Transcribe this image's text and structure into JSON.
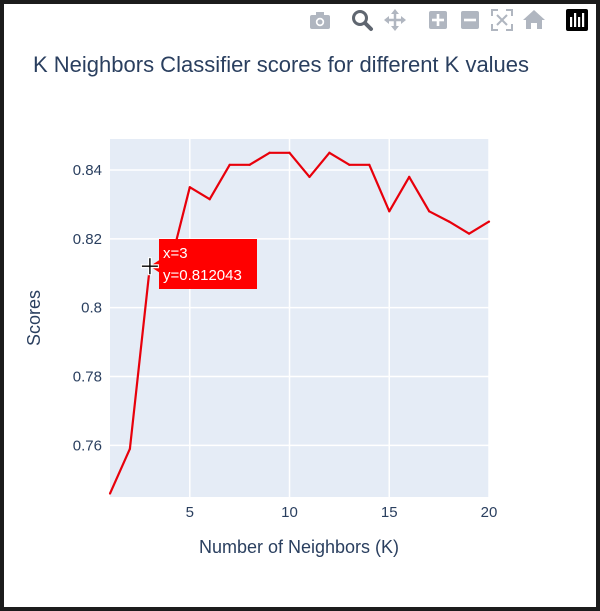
{
  "chart_data": {
    "type": "line",
    "title": "K Neighbors Classifier scores for different K values",
    "xlabel": "Number of Neighbors (K)",
    "ylabel": "Scores",
    "xlim": [
      1,
      20
    ],
    "ylim": [
      0.745,
      0.849
    ],
    "xticks": [
      5,
      10,
      15,
      20
    ],
    "yticks": [
      0.76,
      0.78,
      0.8,
      0.82,
      0.84
    ],
    "ytick_labels": [
      "0.76",
      "0.78",
      "0.8",
      "0.82",
      "0.84"
    ],
    "grid": true,
    "series": [
      {
        "color": "#e8000b",
        "x": [
          1,
          2,
          3,
          4,
          5,
          6,
          7,
          8,
          9,
          10,
          11,
          12,
          13,
          14,
          15,
          16,
          17,
          18,
          19,
          20
        ],
        "y": [
          0.746,
          0.759,
          0.812043,
          0.812,
          0.835,
          0.8315,
          0.8415,
          0.8415,
          0.845,
          0.845,
          0.838,
          0.845,
          0.8415,
          0.8415,
          0.828,
          0.838,
          0.828,
          0.825,
          0.8215,
          0.825
        ]
      }
    ],
    "hover": {
      "x_text": "x=3",
      "y_text": "y=0.812043",
      "x": 3,
      "y": 0.812043,
      "bg": "#ff0000"
    },
    "plot_bg": "#e5ecf6"
  },
  "modebar": {
    "buttons": [
      "camera-icon",
      "zoom-icon",
      "pan-icon",
      "zoom-in-icon",
      "zoom-out-icon",
      "autoscale-icon",
      "home-icon",
      "plotly-logo-icon"
    ]
  }
}
